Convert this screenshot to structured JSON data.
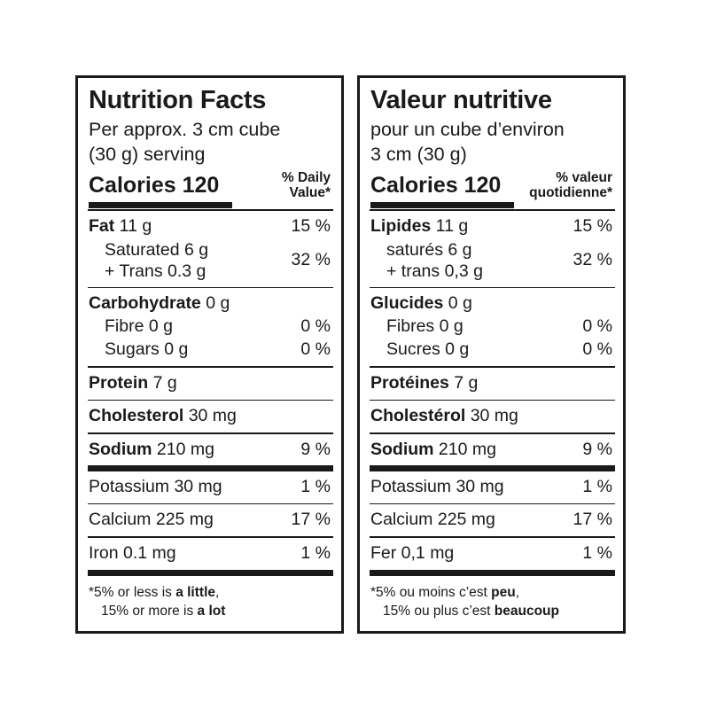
{
  "english": {
    "title": "Nutrition Facts",
    "serving_line1": "Per approx. 3 cm cube",
    "serving_line2": "(30 g) serving",
    "calories": "Calories 120",
    "dv_line1": "% Daily",
    "dv_line2": "Value*",
    "fat_name": "Fat",
    "fat_amount": " 11 g",
    "fat_pct": "15 %",
    "saturated": "Saturated 6 g",
    "trans": "+ Trans 0.3 g",
    "sat_trans_pct": "32 %",
    "carb_name": "Carbohydrate",
    "carb_amount": " 0 g",
    "fibre": "Fibre 0 g",
    "fibre_pct": "0 %",
    "sugars": "Sugars 0 g",
    "sugars_pct": "0 %",
    "protein_name": "Protein",
    "protein_amount": " 7 g",
    "chol_name": "Cholesterol",
    "chol_amount": " 30 mg",
    "sodium_name": "Sodium",
    "sodium_amount": " 210 mg",
    "sodium_pct": "9 %",
    "potassium": "Potassium 30 mg",
    "potassium_pct": "1 %",
    "calcium": "Calcium 225 mg",
    "calcium_pct": "17 %",
    "iron": "Iron 0.1 mg",
    "iron_pct": "1 %",
    "foot1_a": "*5% or less is ",
    "foot1_b": "a little",
    "foot1_c": ",",
    "foot2_a": "15% or more is ",
    "foot2_b": "a lot"
  },
  "french": {
    "title": "Valeur nutritive",
    "serving_line1": "pour un cube d’environ",
    "serving_line2": "3 cm (30 g)",
    "calories": "Calories 120",
    "dv_line1": "% valeur",
    "dv_line2": "quotidienne*",
    "fat_name": "Lipides",
    "fat_amount": " 11 g",
    "fat_pct": "15 %",
    "saturated": "saturés 6 g",
    "trans": "+ trans 0,3 g",
    "sat_trans_pct": "32 %",
    "carb_name": "Glucides",
    "carb_amount": " 0 g",
    "fibre": "Fibres 0 g",
    "fibre_pct": "0 %",
    "sugars": "Sucres 0 g",
    "sugars_pct": "0 %",
    "protein_name": "Protéines",
    "protein_amount": " 7 g",
    "chol_name": "Cholestérol",
    "chol_amount": " 30 mg",
    "sodium_name": "Sodium",
    "sodium_amount": " 210 mg",
    "sodium_pct": "9 %",
    "potassium": "Potassium 30 mg",
    "potassium_pct": "1 %",
    "calcium": "Calcium 225 mg",
    "calcium_pct": "17 %",
    "iron": "Fer 0,1 mg",
    "iron_pct": "1 %",
    "foot1_a": "*5% ou moins c’est ",
    "foot1_b": "peu",
    "foot1_c": ",",
    "foot2_a": "15% ou plus c’est ",
    "foot2_b": "beaucoup"
  },
  "colors": {
    "ink": "#1a1a1a",
    "background": "#ffffff"
  }
}
